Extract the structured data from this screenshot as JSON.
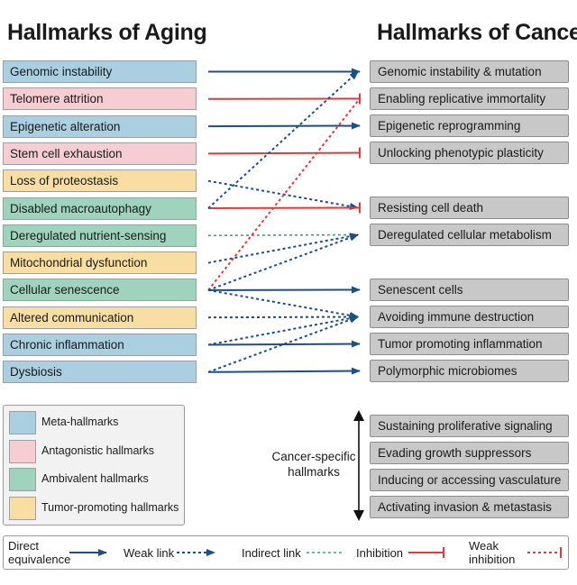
{
  "title_aging": "Hallmarks of Aging",
  "title_cancer": "Hallmarks of Cancer",
  "colors": {
    "meta": "#a9cfe1",
    "antagonistic": "#f6cdd2",
    "ambivalent": "#9fd3bd",
    "tumor_promoting": "#f8dea2",
    "cancer_box": "#c8c8c8",
    "arrow_blue": "#1d4f86",
    "inhibition_red": "#e0393e",
    "indirect_green": "#3fa072"
  },
  "aging_hallmarks": [
    {
      "label": "Genomic instability",
      "category": "meta"
    },
    {
      "label": "Telomere attrition",
      "category": "antagonistic"
    },
    {
      "label": "Epigenetic alteration",
      "category": "meta"
    },
    {
      "label": "Stem cell exhaustion",
      "category": "antagonistic"
    },
    {
      "label": "Loss of proteostasis",
      "category": "tumor_promoting"
    },
    {
      "label": "Disabled macroautophagy",
      "category": "ambivalent"
    },
    {
      "label": "Deregulated nutrient-sensing",
      "category": "ambivalent"
    },
    {
      "label": "Mitochondrial dysfunction",
      "category": "tumor_promoting"
    },
    {
      "label": "Cellular senescence",
      "category": "ambivalent"
    },
    {
      "label": "Altered communication",
      "category": "tumor_promoting"
    },
    {
      "label": "Chronic inflammation",
      "category": "meta"
    },
    {
      "label": "Dysbiosis",
      "category": "meta"
    }
  ],
  "cancer_hallmarks": [
    {
      "label": "Genomic instability & mutation"
    },
    {
      "label": "Enabling replicative immortality"
    },
    {
      "label": "Epigenetic reprogramming"
    },
    {
      "label": "Unlocking phenotypic plasticity"
    },
    {
      "label": "Resisting cell death"
    },
    {
      "label": "Deregulated cellular metabolism"
    },
    {
      "label": "Senescent cells"
    },
    {
      "label": "Avoiding immune destruction"
    },
    {
      "label": "Tumor promoting inflammation"
    },
    {
      "label": "Polymorphic microbiomes"
    },
    {
      "label": "Sustaining proliferative signaling"
    },
    {
      "label": "Evading growth suppressors"
    },
    {
      "label": "Inducing or accessing vasculature"
    },
    {
      "label": "Activating invasion & metastasis"
    }
  ],
  "links": [
    {
      "from": "Genomic instability",
      "to": "Genomic instability & mutation",
      "type": "direct"
    },
    {
      "from": "Telomere attrition",
      "to": "Enabling replicative immortality",
      "type": "inhibition"
    },
    {
      "from": "Epigenetic alteration",
      "to": "Epigenetic reprogramming",
      "type": "direct"
    },
    {
      "from": "Stem cell exhaustion",
      "to": "Unlocking phenotypic plasticity",
      "type": "inhibition"
    },
    {
      "from": "Loss of proteostasis",
      "to": "Resisting cell death",
      "type": "weak"
    },
    {
      "from": "Disabled macroautophagy",
      "to": "Resisting cell death",
      "type": "inhibition"
    },
    {
      "from": "Disabled macroautophagy",
      "to": "Genomic instability & mutation",
      "type": "weak"
    },
    {
      "from": "Deregulated nutrient-sensing",
      "to": "Deregulated cellular metabolism",
      "type": "indirect"
    },
    {
      "from": "Mitochondrial dysfunction",
      "to": "Deregulated cellular metabolism",
      "type": "weak"
    },
    {
      "from": "Cellular senescence",
      "to": "Senescent cells",
      "type": "direct"
    },
    {
      "from": "Cellular senescence",
      "to": "Enabling replicative immortality",
      "type": "weak_inhibition"
    },
    {
      "from": "Cellular senescence",
      "to": "Deregulated cellular metabolism",
      "type": "weak"
    },
    {
      "from": "Cellular senescence",
      "to": "Avoiding immune destruction",
      "type": "weak"
    },
    {
      "from": "Altered communication",
      "to": "Avoiding immune destruction",
      "type": "weak"
    },
    {
      "from": "Chronic inflammation",
      "to": "Tumor promoting inflammation",
      "type": "direct"
    },
    {
      "from": "Chronic inflammation",
      "to": "Avoiding immune destruction",
      "type": "weak"
    },
    {
      "from": "Dysbiosis",
      "to": "Polymorphic microbiomes",
      "type": "direct"
    },
    {
      "from": "Dysbiosis",
      "to": "Avoiding immune destruction",
      "type": "weak"
    }
  ],
  "legend": [
    {
      "label": "Meta-hallmarks",
      "category": "meta"
    },
    {
      "label": "Antagonistic hallmarks",
      "category": "antagonistic"
    },
    {
      "label": "Ambivalent hallmarks",
      "category": "ambivalent"
    },
    {
      "label": "Tumor-promoting hallmarks",
      "category": "tumor_promoting"
    }
  ],
  "cancer_specific_label": "Cancer-specific hallmarks",
  "key": {
    "direct": "Direct equivalence",
    "weak": "Weak link",
    "indirect": "Indirect link",
    "inhibition": "Inhibition",
    "weak_inhibition": "Weak inhibition"
  }
}
